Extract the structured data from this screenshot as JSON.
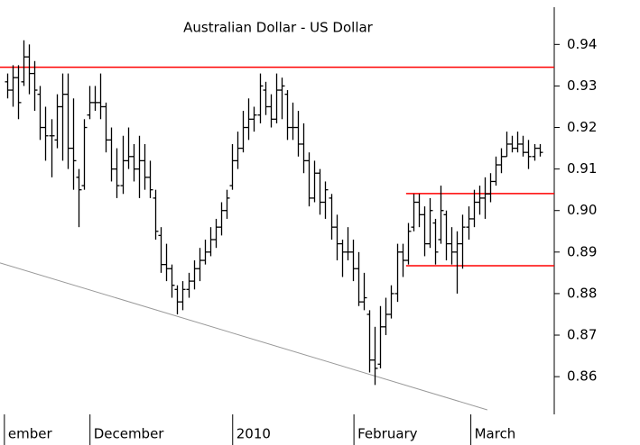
{
  "chart_data": {
    "type": "ohlc",
    "title": "Australian Dollar - US Dollar",
    "color": "#000000",
    "xlim": [
      -1.3,
      99.7
    ],
    "ylim": [
      0.852,
      0.9507
    ],
    "yticks": [
      0.86,
      0.87,
      0.88,
      0.89,
      0.9,
      0.91,
      0.92,
      0.93,
      0.94
    ],
    "ytick_labels": [
      "0.86",
      "0.87",
      "0.88",
      "0.89",
      "0.90",
      "0.91",
      "0.92",
      "0.93",
      "0.94"
    ],
    "xticks": [
      {
        "value": -0.5,
        "label": "ember"
      },
      {
        "value": 15.1,
        "label": "December"
      },
      {
        "value": 41.1,
        "label": "2010"
      },
      {
        "value": 63.2,
        "label": "February"
      },
      {
        "value": 84.5,
        "label": "March"
      }
    ],
    "open": [
      0.931,
      0.929,
      0.932,
      0.931,
      0.937,
      0.933,
      0.928,
      0.92,
      0.918,
      0.917,
      0.925,
      0.928,
      0.915,
      0.908,
      0.906,
      0.923,
      0.926,
      0.926,
      0.925,
      0.917,
      0.91,
      0.906,
      0.912,
      0.913,
      0.91,
      0.912,
      0.908,
      0.903,
      0.894,
      0.887,
      0.886,
      0.881,
      0.878,
      0.881,
      0.883,
      0.886,
      0.888,
      0.89,
      0.893,
      0.896,
      0.9,
      0.906,
      0.912,
      0.915,
      0.92,
      0.922,
      0.923,
      0.929,
      0.925,
      0.922,
      0.929,
      0.928,
      0.92,
      0.92,
      0.916,
      0.912,
      0.903,
      0.909,
      0.902,
      0.903,
      0.896,
      0.892,
      0.89,
      0.89,
      0.886,
      0.878,
      0.875,
      0.864,
      0.863,
      0.872,
      0.875,
      0.88,
      0.89,
      0.888,
      0.896,
      0.902,
      0.899,
      0.892,
      0.897,
      0.893,
      0.899,
      0.892,
      0.89,
      0.892,
      0.896,
      0.898,
      0.902,
      0.903,
      0.904,
      0.907,
      0.911,
      0.913,
      0.916,
      0.915,
      0.916,
      0.914,
      0.913,
      0.915
    ],
    "high": [
      0.933,
      0.935,
      0.935,
      0.941,
      0.94,
      0.936,
      0.93,
      0.925,
      0.922,
      0.928,
      0.933,
      0.933,
      0.927,
      0.91,
      0.922,
      0.93,
      0.93,
      0.933,
      0.926,
      0.92,
      0.915,
      0.918,
      0.92,
      0.916,
      0.918,
      0.916,
      0.912,
      0.905,
      0.896,
      0.892,
      0.887,
      0.882,
      0.883,
      0.885,
      0.888,
      0.891,
      0.893,
      0.896,
      0.898,
      0.902,
      0.905,
      0.916,
      0.919,
      0.924,
      0.927,
      0.925,
      0.933,
      0.931,
      0.928,
      0.933,
      0.932,
      0.929,
      0.926,
      0.924,
      0.921,
      0.914,
      0.912,
      0.91,
      0.907,
      0.904,
      0.899,
      0.893,
      0.896,
      0.893,
      0.89,
      0.885,
      0.876,
      0.872,
      0.877,
      0.879,
      0.882,
      0.892,
      0.892,
      0.897,
      0.904,
      0.904,
      0.901,
      0.903,
      0.898,
      0.906,
      0.9,
      0.896,
      0.895,
      0.899,
      0.901,
      0.905,
      0.906,
      0.908,
      0.909,
      0.913,
      0.915,
      0.919,
      0.918,
      0.919,
      0.918,
      0.917,
      0.916,
      0.916
    ],
    "low": [
      0.927,
      0.925,
      0.922,
      0.93,
      0.928,
      0.924,
      0.917,
      0.912,
      0.908,
      0.915,
      0.912,
      0.91,
      0.905,
      0.896,
      0.905,
      0.922,
      0.924,
      0.922,
      0.914,
      0.907,
      0.903,
      0.904,
      0.91,
      0.907,
      0.903,
      0.905,
      0.903,
      0.893,
      0.885,
      0.883,
      0.879,
      0.875,
      0.876,
      0.879,
      0.881,
      0.883,
      0.887,
      0.889,
      0.891,
      0.894,
      0.898,
      0.905,
      0.91,
      0.914,
      0.917,
      0.919,
      0.921,
      0.923,
      0.92,
      0.921,
      0.922,
      0.917,
      0.917,
      0.913,
      0.909,
      0.901,
      0.902,
      0.899,
      0.898,
      0.893,
      0.888,
      0.884,
      0.888,
      0.883,
      0.877,
      0.876,
      0.861,
      0.858,
      0.862,
      0.87,
      0.874,
      0.878,
      0.884,
      0.887,
      0.895,
      0.896,
      0.889,
      0.891,
      0.887,
      0.892,
      0.888,
      0.887,
      0.88,
      0.886,
      0.893,
      0.896,
      0.899,
      0.898,
      0.902,
      0.906,
      0.909,
      0.913,
      0.914,
      0.914,
      0.913,
      0.91,
      0.912,
      0.913
    ],
    "close": [
      0.929,
      0.932,
      0.926,
      0.937,
      0.933,
      0.929,
      0.92,
      0.918,
      0.918,
      0.925,
      0.928,
      0.915,
      0.912,
      0.905,
      0.92,
      0.926,
      0.926,
      0.925,
      0.917,
      0.91,
      0.906,
      0.912,
      0.913,
      0.91,
      0.912,
      0.908,
      0.905,
      0.895,
      0.887,
      0.886,
      0.882,
      0.878,
      0.881,
      0.883,
      0.886,
      0.888,
      0.89,
      0.893,
      0.896,
      0.9,
      0.903,
      0.912,
      0.915,
      0.92,
      0.922,
      0.923,
      0.93,
      0.925,
      0.922,
      0.929,
      0.93,
      0.92,
      0.92,
      0.916,
      0.912,
      0.903,
      0.909,
      0.902,
      0.905,
      0.896,
      0.892,
      0.89,
      0.89,
      0.886,
      0.878,
      0.879,
      0.864,
      0.862,
      0.872,
      0.875,
      0.88,
      0.89,
      0.888,
      0.895,
      0.902,
      0.899,
      0.892,
      0.9,
      0.89,
      0.9,
      0.892,
      0.89,
      0.892,
      0.896,
      0.898,
      0.902,
      0.903,
      0.904,
      0.907,
      0.911,
      0.913,
      0.916,
      0.915,
      0.916,
      0.914,
      0.913,
      0.915,
      0.914
    ],
    "lines": [
      {
        "color": "#ff0000",
        "x": [
          -1.3,
          99.7
        ],
        "y": [
          0.9345,
          0.9345
        ]
      },
      {
        "color": "#ff0000",
        "x": [
          72.7,
          99.7
        ],
        "y": [
          0.9041,
          0.9041
        ]
      },
      {
        "color": "#ff0000",
        "x": [
          72.7,
          99.7
        ],
        "y": [
          0.8867,
          0.8867
        ]
      },
      {
        "color": "#999999",
        "x": [
          -1.3,
          87.5
        ],
        "y": [
          0.8874,
          0.852
        ]
      }
    ]
  }
}
